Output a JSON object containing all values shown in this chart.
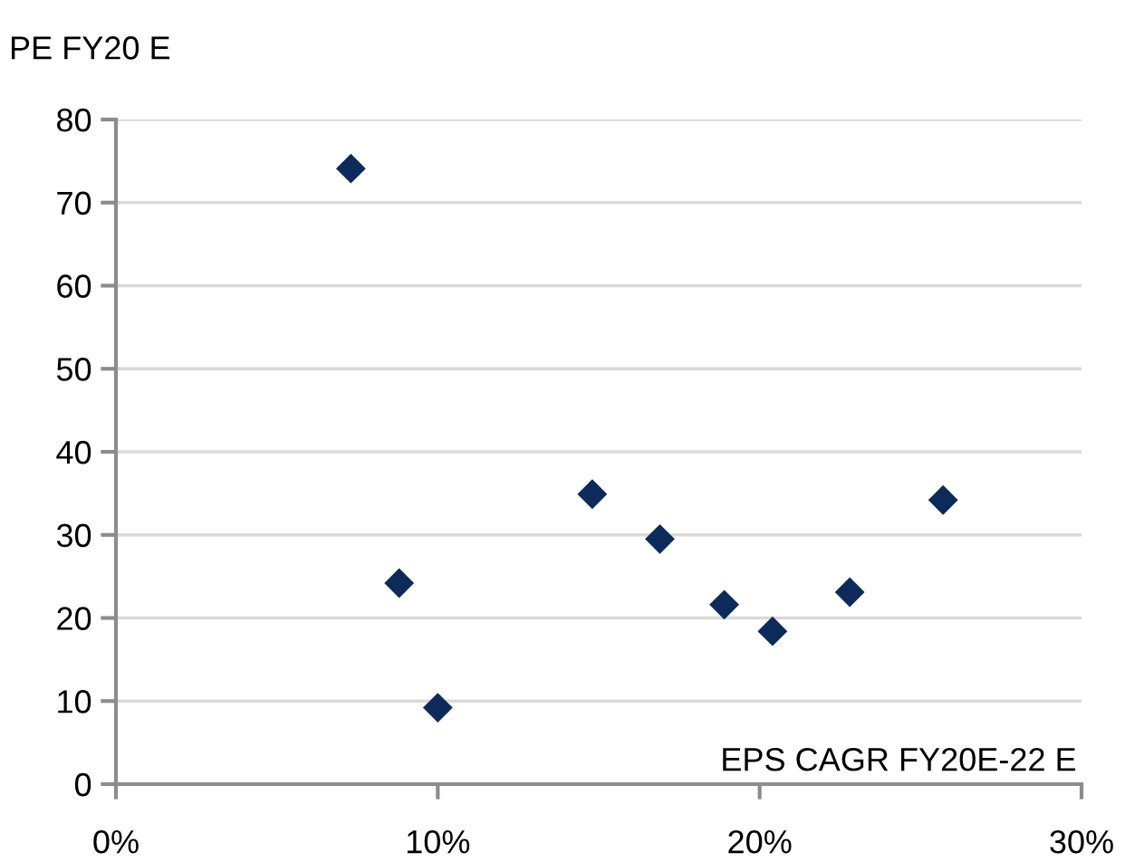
{
  "chart_data": {
    "type": "scatter",
    "xlabel": "EPS CAGR FY20E-22 E",
    "ylabel": "PE FY20 E",
    "x": [
      7.3,
      8.8,
      10.0,
      14.8,
      16.9,
      18.9,
      20.4,
      22.8,
      25.7
    ],
    "series": [
      {
        "color": "#0d2b5a",
        "values": [
          74.1,
          24.2,
          9.2,
          34.9,
          29.5,
          21.6,
          18.4,
          23.1,
          34.2
        ]
      }
    ],
    "xlim": [
      0,
      30
    ],
    "xticks": [
      {
        "value": 0,
        "label": "0%"
      },
      {
        "value": 10,
        "label": "10%"
      },
      {
        "value": 20,
        "label": "20%"
      },
      {
        "value": 30,
        "label": "30%"
      }
    ],
    "ylim": [
      0,
      80
    ],
    "yticks": [
      0,
      10,
      20,
      30,
      40,
      50,
      60,
      70,
      80
    ],
    "grid": "y",
    "marker": "diamond"
  }
}
